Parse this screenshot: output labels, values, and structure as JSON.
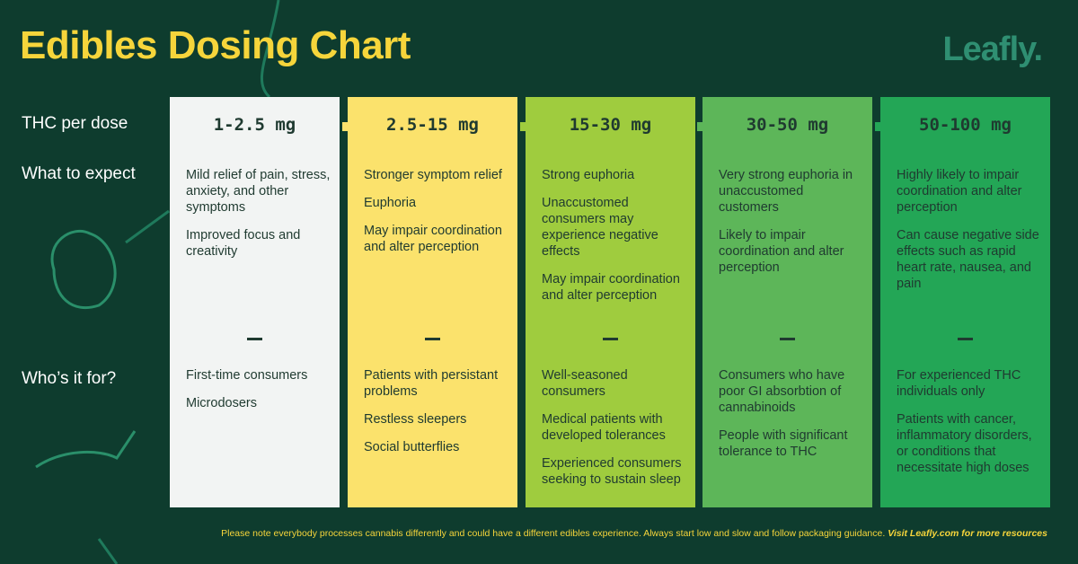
{
  "title": "Edibles Dosing Chart",
  "brand": "Leafly.",
  "row_labels": [
    "THC per dose",
    "What to expect",
    "Who’s it for?"
  ],
  "columns": [
    {
      "dose": "1-2.5 mg",
      "color": "#f2f4f3",
      "expect": [
        "Mild relief of pain, stress, anxiety, and other symptoms",
        "Improved focus and creativity"
      ],
      "for": [
        "First-time consumers",
        "Microdosers"
      ]
    },
    {
      "dose": "2.5-15 mg",
      "color": "#fbe26c",
      "expect": [
        "Stronger symptom relief",
        "Euphoria",
        "May impair coordination and alter perception"
      ],
      "for": [
        "Patients with persistant problems",
        "Restless sleepers",
        "Social butterflies"
      ]
    },
    {
      "dose": "15-30 mg",
      "color": "#9fcc3e",
      "expect": [
        "Strong euphoria",
        "Unaccustomed consumers may experience negative effects",
        "May impair coordination and alter perception"
      ],
      "for": [
        "Well-seasoned consumers",
        "Medical patients with developed tolerances",
        "Experienced consumers seeking to sustain sleep"
      ]
    },
    {
      "dose": "30-50 mg",
      "color": "#5db659",
      "expect": [
        "Very strong euphoria in unaccustomed customers",
        "Likely to impair coordination and alter perception"
      ],
      "for": [
        "Consumers who have poor GI absorbtion of cannabinoids",
        "People with significant tolerance to THC"
      ]
    },
    {
      "dose": "50-100 mg",
      "color": "#23a656",
      "expect": [
        "Highly likely to impair coordination and alter perception",
        "Can cause negative side effects such as rapid heart rate, nausea, and pain"
      ],
      "for": [
        "For experienced THC individuals only",
        "Patients with cancer, inflammatory disorders, or conditions that necessitate high doses"
      ]
    }
  ],
  "footer": {
    "note": "Please note everybody processes cannabis differently and could have a different edibles experience. Always start low and slow and follow packaging guidance.",
    "link": "Visit Leafly.com for more resources"
  }
}
